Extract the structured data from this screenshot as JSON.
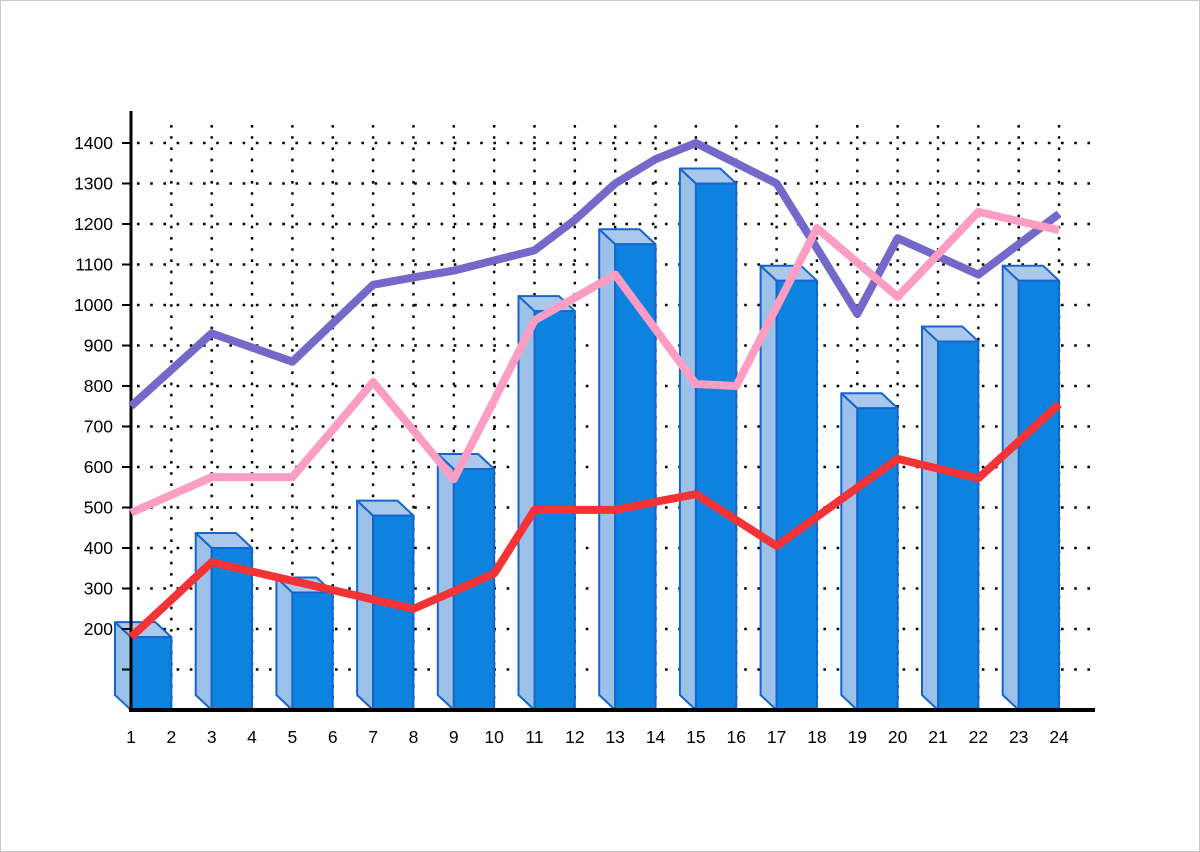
{
  "page": {
    "background": "#ffffff",
    "frame_border_color": "#c9c9c9",
    "title": ""
  },
  "chart_data": {
    "type": "bar+line combo (3D-style bars with three overlaid line series, dotted grid)",
    "title": "",
    "subtitle": "",
    "xlabel": "",
    "ylabel": "",
    "legend": null,
    "grid": {
      "style": "dotted",
      "color": "#000000",
      "vertical_at_every_x": true,
      "horizontal_step": 100
    },
    "x_tick_labels": [
      "1",
      "2",
      "3",
      "4",
      "5",
      "6",
      "7",
      "8",
      "9",
      "10",
      "11",
      "12",
      "13",
      "14",
      "15",
      "16",
      "17",
      "18",
      "19",
      "20",
      "21",
      "22",
      "23",
      "24"
    ],
    "y_axis": {
      "min": 0,
      "max": 1450,
      "tick_step": 100,
      "grid_min": 100,
      "grid_max": 1400,
      "labeled_ticks": [
        200,
        300,
        400,
        500,
        600,
        700,
        800,
        900,
        1000,
        1100,
        1200,
        1300,
        1400
      ]
    },
    "bars": {
      "name": "blue-3d-bars",
      "x": [
        1,
        3,
        5,
        7,
        9,
        11,
        13,
        15,
        17,
        19,
        21,
        23
      ],
      "values": [
        180,
        400,
        290,
        480,
        595,
        985,
        1150,
        1300,
        1060,
        745,
        910,
        1060
      ],
      "bar_width_units": 1,
      "front_color": "#0d82de",
      "top_color": "#a9c8ec",
      "side_color": "#9cc1e8",
      "outline_color": "#1565cd"
    },
    "series": [
      {
        "name": "purple-line",
        "color": "#7468c9",
        "stroke_width": 8,
        "values": [
          750,
          840,
          930,
          895,
          860,
          955,
          1050,
          1068,
          1085,
          1110,
          1135,
          1210,
          1300,
          1360,
          1400,
          1350,
          1300,
          1140,
          978,
          1165,
          1120,
          1075,
          1150,
          1225
        ]
      },
      {
        "name": "pink-line",
        "color": "#fc9dc4",
        "stroke_width": 8,
        "values": [
          487,
          531,
          575,
          575,
          575,
          692,
          810,
          690,
          570,
          765,
          962,
          1018,
          1075,
          940,
          805,
          800,
          995,
          1190,
          1105,
          1020,
          1125,
          1230,
          1207,
          1185
        ]
      },
      {
        "name": "red-line",
        "color": "#f43336",
        "stroke_width": 8,
        "values": [
          180,
          272,
          365,
          342,
          319,
          296,
          273,
          250,
          293,
          337,
          494,
          494,
          494,
          514,
          533,
          469,
          405,
          477,
          549,
          620,
          596,
          572,
          663,
          755
        ]
      }
    ]
  }
}
